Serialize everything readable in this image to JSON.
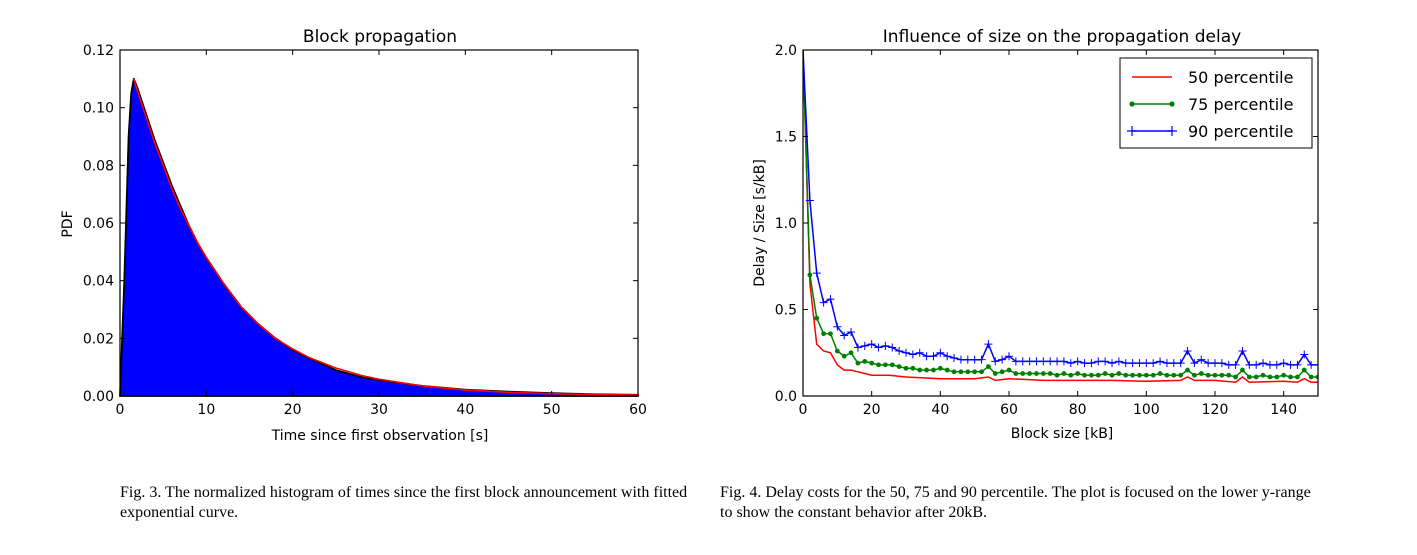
{
  "chart_data": [
    {
      "type": "area",
      "title": "Block propagation",
      "xlabel": "Time since first observation [s]",
      "ylabel": "PDF",
      "xlim": [
        0,
        60
      ],
      "ylim": [
        0,
        0.12
      ],
      "xticks": [
        0,
        10,
        20,
        30,
        40,
        50,
        60
      ],
      "yticks": [
        0.0,
        0.02,
        0.04,
        0.06,
        0.08,
        0.1,
        0.12
      ],
      "xtick_labels": [
        "0",
        "10",
        "20",
        "30",
        "40",
        "50",
        "60"
      ],
      "ytick_labels": [
        "0.00",
        "0.02",
        "0.04",
        "0.06",
        "0.08",
        "0.10",
        "0.12"
      ],
      "series": [
        {
          "kind": "histogram",
          "color": "#0000ff",
          "edge_color": "#000000",
          "x": [
            0,
            0.5,
            1.0,
            1.3,
            1.6,
            2.0,
            3,
            4,
            5,
            6,
            7,
            8,
            9,
            10,
            12,
            14,
            16,
            18,
            20,
            22,
            25,
            28,
            30,
            35,
            40,
            45,
            50,
            55,
            60
          ],
          "y": [
            0.0,
            0.04,
            0.09,
            0.105,
            0.11,
            0.107,
            0.098,
            0.089,
            0.081,
            0.073,
            0.066,
            0.059,
            0.053,
            0.048,
            0.039,
            0.031,
            0.025,
            0.02,
            0.016,
            0.013,
            0.009,
            0.0065,
            0.0055,
            0.0035,
            0.0022,
            0.0015,
            0.001,
            0.0006,
            0.0004
          ]
        },
        {
          "kind": "fit",
          "color": "#ff0000",
          "x": [
            1.6,
            2,
            3,
            4,
            5,
            6,
            7,
            8,
            9,
            10,
            12,
            14,
            16,
            18,
            20,
            22,
            25,
            28,
            30,
            35,
            40,
            45,
            50,
            55,
            60
          ],
          "y": [
            0.11,
            0.106,
            0.097,
            0.088,
            0.08,
            0.072,
            0.065,
            0.059,
            0.053,
            0.048,
            0.039,
            0.031,
            0.025,
            0.02,
            0.0163,
            0.0132,
            0.0097,
            0.0071,
            0.0058,
            0.0035,
            0.0021,
            0.0013,
            0.0008,
            0.0005,
            0.0003
          ]
        }
      ],
      "grid": false
    },
    {
      "type": "line",
      "title": "Influence of size on the propagation delay",
      "xlabel": "Block size [kB]",
      "ylabel": "Delay / Size [s/kB]",
      "xlim": [
        0,
        150
      ],
      "ylim": [
        0,
        2.0
      ],
      "xticks": [
        0,
        20,
        40,
        60,
        80,
        100,
        120,
        140
      ],
      "yticks": [
        0.0,
        0.5,
        1.0,
        1.5,
        2.0
      ],
      "xtick_labels": [
        "0",
        "20",
        "40",
        "60",
        "80",
        "100",
        "120",
        "140"
      ],
      "ytick_labels": [
        "0.0",
        "0.5",
        "1.0",
        "1.5",
        "2.0"
      ],
      "legend_position": "top-right",
      "grid": false,
      "series": [
        {
          "name": "50 percentile",
          "color": "#ff0000",
          "marker": "none",
          "x": [
            0,
            2,
            4,
            6,
            8,
            10,
            12,
            14,
            16,
            18,
            20,
            25,
            30,
            40,
            50,
            54,
            56,
            60,
            70,
            80,
            90,
            100,
            110,
            112,
            114,
            120,
            126,
            128,
            130,
            140,
            144,
            146,
            148,
            150
          ],
          "y": [
            2.0,
            0.65,
            0.3,
            0.26,
            0.25,
            0.18,
            0.15,
            0.15,
            0.14,
            0.13,
            0.12,
            0.12,
            0.11,
            0.1,
            0.1,
            0.11,
            0.09,
            0.1,
            0.09,
            0.09,
            0.09,
            0.085,
            0.09,
            0.11,
            0.09,
            0.09,
            0.08,
            0.11,
            0.08,
            0.085,
            0.08,
            0.1,
            0.08,
            0.08
          ]
        },
        {
          "name": "75 percentile",
          "color": "#008000",
          "marker": "dot",
          "x": [
            0,
            2,
            4,
            6,
            8,
            10,
            12,
            14,
            16,
            18,
            20,
            22,
            24,
            26,
            28,
            30,
            32,
            34,
            36,
            38,
            40,
            42,
            44,
            46,
            48,
            50,
            52,
            54,
            56,
            58,
            60,
            62,
            64,
            66,
            68,
            70,
            72,
            74,
            76,
            78,
            80,
            82,
            84,
            86,
            88,
            90,
            92,
            94,
            96,
            98,
            100,
            102,
            104,
            106,
            108,
            110,
            112,
            114,
            116,
            118,
            120,
            122,
            124,
            126,
            128,
            130,
            132,
            134,
            136,
            138,
            140,
            142,
            144,
            146,
            148,
            150
          ],
          "y": [
            2.0,
            0.7,
            0.45,
            0.36,
            0.36,
            0.26,
            0.23,
            0.25,
            0.19,
            0.2,
            0.19,
            0.18,
            0.18,
            0.18,
            0.17,
            0.16,
            0.16,
            0.15,
            0.15,
            0.15,
            0.16,
            0.15,
            0.14,
            0.14,
            0.14,
            0.14,
            0.14,
            0.17,
            0.13,
            0.14,
            0.15,
            0.13,
            0.13,
            0.13,
            0.13,
            0.13,
            0.13,
            0.12,
            0.13,
            0.12,
            0.13,
            0.12,
            0.12,
            0.12,
            0.13,
            0.12,
            0.13,
            0.12,
            0.12,
            0.12,
            0.12,
            0.12,
            0.13,
            0.12,
            0.12,
            0.12,
            0.15,
            0.12,
            0.13,
            0.12,
            0.12,
            0.12,
            0.12,
            0.11,
            0.15,
            0.11,
            0.11,
            0.12,
            0.11,
            0.11,
            0.12,
            0.11,
            0.11,
            0.15,
            0.11,
            0.11
          ]
        },
        {
          "name": "90 percentile",
          "color": "#0000ff",
          "marker": "plus",
          "x": [
            0,
            2,
            4,
            6,
            8,
            10,
            12,
            14,
            16,
            18,
            20,
            22,
            24,
            26,
            28,
            30,
            32,
            34,
            36,
            38,
            40,
            42,
            44,
            46,
            48,
            50,
            52,
            54,
            56,
            58,
            60,
            62,
            64,
            66,
            68,
            70,
            72,
            74,
            76,
            78,
            80,
            82,
            84,
            86,
            88,
            90,
            92,
            94,
            96,
            98,
            100,
            102,
            104,
            106,
            108,
            110,
            112,
            114,
            116,
            118,
            120,
            122,
            124,
            126,
            128,
            130,
            132,
            134,
            136,
            138,
            140,
            142,
            144,
            146,
            148,
            150
          ],
          "y": [
            2.0,
            1.13,
            0.71,
            0.54,
            0.56,
            0.4,
            0.35,
            0.37,
            0.28,
            0.29,
            0.3,
            0.28,
            0.29,
            0.28,
            0.26,
            0.25,
            0.24,
            0.25,
            0.23,
            0.23,
            0.25,
            0.23,
            0.22,
            0.21,
            0.21,
            0.21,
            0.21,
            0.3,
            0.2,
            0.21,
            0.23,
            0.2,
            0.2,
            0.2,
            0.2,
            0.2,
            0.2,
            0.2,
            0.2,
            0.19,
            0.2,
            0.19,
            0.19,
            0.2,
            0.2,
            0.19,
            0.2,
            0.19,
            0.19,
            0.19,
            0.19,
            0.19,
            0.2,
            0.19,
            0.19,
            0.19,
            0.26,
            0.19,
            0.21,
            0.19,
            0.19,
            0.19,
            0.18,
            0.18,
            0.26,
            0.18,
            0.18,
            0.19,
            0.18,
            0.18,
            0.19,
            0.18,
            0.18,
            0.24,
            0.18,
            0.18
          ]
        }
      ]
    }
  ],
  "captions": {
    "left": "Fig. 3.   The normalized histogram of times since the first block announcement with fitted exponential curve.",
    "right": "Fig. 4.   Delay costs for the 50, 75 and 90 percentile. The plot is focused on the lower y-range to show the constant behavior after 20kB."
  }
}
